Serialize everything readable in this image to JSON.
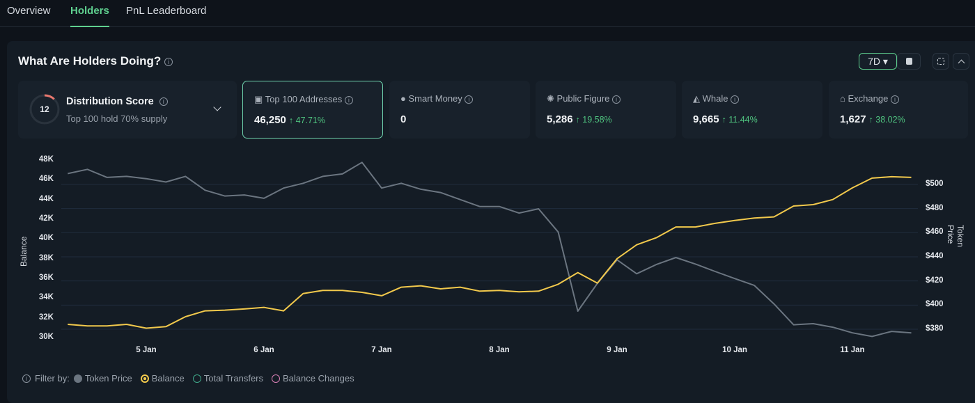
{
  "tabs": [
    {
      "label": "Overview"
    },
    {
      "label": "Holders",
      "active": true
    },
    {
      "label": "PnL Leaderboard"
    }
  ],
  "panel": {
    "title": "What Are Holders Doing?",
    "info_icon": "i",
    "range": "7D",
    "range_caret": "▾"
  },
  "distribution": {
    "score": "12",
    "score_fraction": 0.12,
    "label": "Distribution Score",
    "sub": "Top 100 hold 70% supply"
  },
  "cards": [
    {
      "label": "Top 100 Addresses",
      "icon": "cash-icon",
      "value": "46,250",
      "change": "↑ 47.71%"
    },
    {
      "label": "Smart Money",
      "icon": "sunglasses-icon",
      "value": "0",
      "change": ""
    },
    {
      "label": "Public Figure",
      "icon": "spotlight-icon",
      "value": "5,286",
      "change": "↑ 19.58%"
    },
    {
      "label": "Whale",
      "icon": "whale-icon",
      "value": "9,665",
      "change": "↑ 11.44%"
    },
    {
      "label": "Exchange",
      "icon": "bank-icon",
      "value": "1,627",
      "change": "↑ 38.02%"
    }
  ],
  "colors": {
    "accent": "#5fd08f",
    "price": "#6b7580",
    "balance": "#f2c94c",
    "transfers": "#3fa88a",
    "balance_changes": "#d87fb5",
    "positive": "#4fc37f"
  },
  "filter": {
    "label": "Filter by:",
    "items": [
      {
        "label": "Token Price",
        "color": "#6b7580",
        "filled": true
      },
      {
        "label": "Balance",
        "color": "#f2c94c",
        "checked": true
      },
      {
        "label": "Total Transfers",
        "color": "#3fa88a"
      },
      {
        "label": "Balance Changes",
        "color": "#d87fb5"
      }
    ]
  },
  "chart_data": {
    "type": "line",
    "ylabel": "Balance",
    "y2label": "Token Price",
    "yticks": [
      "48K",
      "46K",
      "44K",
      "42K",
      "40K",
      "38K",
      "36K",
      "34K",
      "32K",
      "30K"
    ],
    "y2ticks": [
      "$500",
      "$480",
      "$460",
      "$440",
      "$420",
      "$400",
      "$380"
    ],
    "xticks": [
      "5 Jan",
      "6 Jan",
      "7 Jan",
      "8 Jan",
      "9 Jan",
      "10 Jan",
      "11 Jan"
    ],
    "ylim": [
      30000,
      48000
    ],
    "y2lim": [
      380,
      500
    ],
    "grid": true,
    "x": [
      "4 Jan 08:00",
      "4 Jan 12:00",
      "4 Jan 16:00",
      "4 Jan 20:00",
      "5 Jan 00:00",
      "5 Jan 04:00",
      "5 Jan 08:00",
      "5 Jan 12:00",
      "5 Jan 16:00",
      "5 Jan 20:00",
      "6 Jan 00:00",
      "6 Jan 04:00",
      "6 Jan 08:00",
      "6 Jan 12:00",
      "6 Jan 16:00",
      "6 Jan 20:00",
      "7 Jan 00:00",
      "7 Jan 04:00",
      "7 Jan 08:00",
      "7 Jan 12:00",
      "7 Jan 16:00",
      "7 Jan 20:00",
      "8 Jan 00:00",
      "8 Jan 04:00",
      "8 Jan 08:00",
      "8 Jan 12:00",
      "8 Jan 16:00",
      "8 Jan 20:00",
      "9 Jan 00:00",
      "9 Jan 04:00",
      "9 Jan 08:00",
      "9 Jan 12:00",
      "9 Jan 16:00",
      "9 Jan 20:00",
      "10 Jan 00:00",
      "10 Jan 04:00",
      "10 Jan 08:00",
      "10 Jan 12:00",
      "10 Jan 16:00",
      "10 Jan 20:00",
      "11 Jan 00:00",
      "11 Jan 04:00",
      "11 Jan 08:00",
      "11 Jan 12:00"
    ],
    "series": [
      {
        "name": "Token Price",
        "axis": "right",
        "values": [
          509,
          512.5,
          505.8,
          506.7,
          504.8,
          502,
          506.7,
          495.2,
          490.4,
          491.3,
          488.5,
          497,
          501,
          506.7,
          508.7,
          518.3,
          497,
          501,
          496,
          493.3,
          487.5,
          481.7,
          481.7,
          476.3,
          479.8,
          460.6,
          395,
          418,
          437.5,
          426,
          433.6,
          439.4,
          434,
          427.9,
          422,
          416.3,
          401,
          383.7,
          384.6,
          381.7,
          377,
          374,
          378.2,
          377
        ]
      },
      {
        "name": "Balance",
        "axis": "left",
        "values": [
          31340,
          31180,
          31180,
          31340,
          30950,
          31110,
          32120,
          32710,
          32780,
          32900,
          33060,
          32710,
          34470,
          34780,
          34780,
          34590,
          34240,
          35110,
          35250,
          34940,
          35110,
          34710,
          34780,
          34640,
          34710,
          35410,
          36590,
          35530,
          38000,
          39410,
          40120,
          41220,
          41220,
          41580,
          41880,
          42120,
          42240,
          43340,
          43480,
          44000,
          45180,
          46170,
          46310,
          46240
        ]
      }
    ]
  }
}
